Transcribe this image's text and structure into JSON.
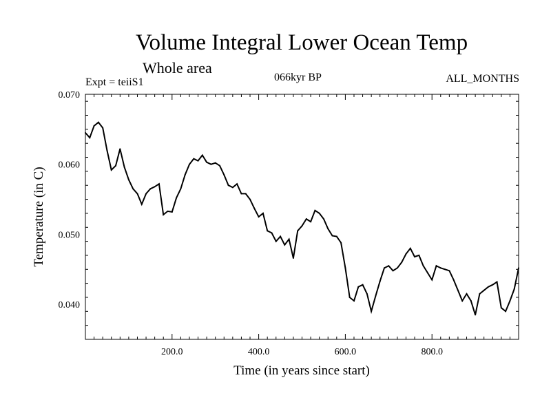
{
  "header": {
    "title": "Volume Integral Lower Ocean Temp",
    "subtitle": "Whole area",
    "experiment": "Expt = teiiS1",
    "period": "066kyr BP",
    "months": "ALL_MONTHS"
  },
  "chart_data": {
    "type": "line",
    "title": "Volume Integral Lower Ocean Temp",
    "xlabel": "Time (in years since start)",
    "ylabel": "Temperature (in C)",
    "xlim": [
      0,
      1000
    ],
    "ylim": [
      0.035,
      0.07
    ],
    "xticks": [
      200,
      400,
      600,
      800
    ],
    "xtick_labels": [
      "200.0",
      "400.0",
      "600.0",
      "800.0"
    ],
    "yticks": [
      0.04,
      0.05,
      0.06,
      0.07
    ],
    "ytick_labels": [
      "0.040",
      "0.050",
      "0.060",
      "0.070"
    ],
    "grid": false,
    "line_color": "#000000",
    "series": [
      {
        "x": [
          0,
          10,
          20,
          30,
          40,
          50,
          60,
          70,
          80,
          90,
          100,
          110,
          120,
          130,
          140,
          150,
          160,
          170,
          180,
          190,
          200,
          210,
          220,
          230,
          240,
          250,
          260,
          270,
          280,
          290,
          300,
          310,
          320,
          330,
          340,
          350,
          360,
          370,
          380,
          390,
          400,
          410,
          420,
          430,
          440,
          450,
          460,
          470,
          480,
          490,
          500,
          510,
          520,
          530,
          540,
          550,
          560,
          570,
          580,
          590,
          600,
          610,
          620,
          630,
          640,
          650,
          660,
          670,
          680,
          690,
          700,
          710,
          720,
          730,
          740,
          750,
          760,
          770,
          780,
          790,
          800,
          810,
          820,
          830,
          840,
          850,
          860,
          870,
          880,
          890,
          900,
          910,
          920,
          930,
          940,
          950,
          960,
          970,
          980,
          990,
          1000
        ],
        "y": [
          0.0645,
          0.0638,
          0.0655,
          0.066,
          0.0652,
          0.062,
          0.0592,
          0.0598,
          0.0622,
          0.0596,
          0.0578,
          0.0565,
          0.0558,
          0.0543,
          0.0558,
          0.0565,
          0.0568,
          0.0572,
          0.0528,
          0.0533,
          0.0532,
          0.0552,
          0.0565,
          0.0585,
          0.06,
          0.0608,
          0.0605,
          0.0613,
          0.0603,
          0.06,
          0.0602,
          0.0598,
          0.0585,
          0.057,
          0.0567,
          0.0572,
          0.0558,
          0.0558,
          0.055,
          0.0537,
          0.0525,
          0.053,
          0.0505,
          0.0502,
          0.049,
          0.0497,
          0.0485,
          0.0493,
          0.0466,
          0.0505,
          0.0512,
          0.0522,
          0.0518,
          0.0534,
          0.053,
          0.0522,
          0.0508,
          0.0498,
          0.0497,
          0.0488,
          0.0452,
          0.041,
          0.0405,
          0.0425,
          0.0428,
          0.0415,
          0.039,
          0.0412,
          0.0433,
          0.0452,
          0.0455,
          0.0448,
          0.0452,
          0.046,
          0.0472,
          0.048,
          0.0468,
          0.047,
          0.0455,
          0.0445,
          0.0435,
          0.0455,
          0.0452,
          0.045,
          0.0448,
          0.0435,
          0.042,
          0.0405,
          0.0415,
          0.0405,
          0.0385,
          0.0415,
          0.042,
          0.0425,
          0.0428,
          0.0432,
          0.0395,
          0.039,
          0.0405,
          0.0422,
          0.0452
        ]
      }
    ]
  }
}
